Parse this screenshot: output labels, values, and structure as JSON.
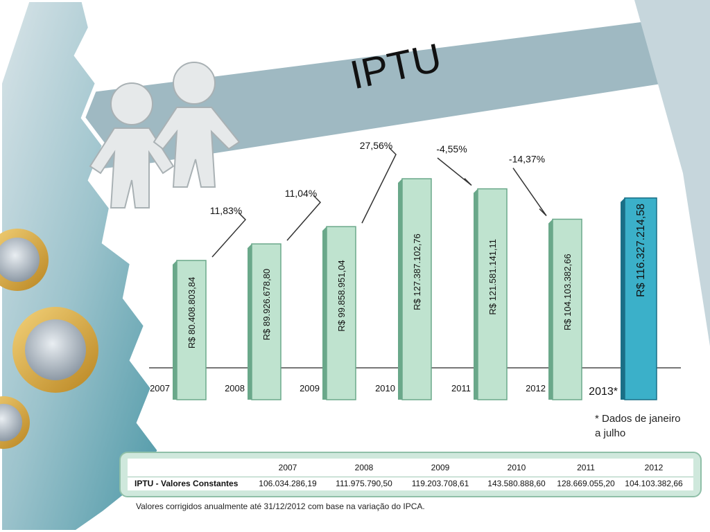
{
  "title": "IPTU",
  "chart_data": {
    "type": "bar",
    "categories": [
      "2007",
      "2008",
      "2009",
      "2010",
      "2011",
      "2012",
      "2013*"
    ],
    "values": [
      80408803.84,
      89926678.8,
      99858951.04,
      127387102.76,
      121581141.11,
      104103382.66,
      116327214.58
    ],
    "value_labels": [
      "R$ 80.408.803,84",
      "R$ 89.926.678,80",
      "R$ 99.858.951,04",
      "R$ 127.387.102,76",
      "R$ 121.581.141,11",
      "R$ 104.103.382,66",
      "R$ 116.327.214,58"
    ],
    "changes": [
      "11,83%",
      "11,04%",
      "27,56%",
      "-4,55%",
      "-14,37%"
    ],
    "highlight_index": 6,
    "colors": {
      "bar": "#bfe3cf",
      "bar_edge": "#6aa88a",
      "highlight": "#3bb0c9",
      "highlight_edge": "#1a6f86"
    },
    "note_lines": [
      "* Dados de janeiro",
      "a julho"
    ]
  },
  "table": {
    "years": [
      "2007",
      "2008",
      "2009",
      "2010",
      "2011",
      "2012"
    ],
    "row_label": "IPTU - Valores Constantes",
    "values": [
      "106.034.286,19",
      "111.975.790,50",
      "119.203.708,61",
      "143.580.888,60",
      "128.669.055,20",
      "104.103.382,66"
    ]
  },
  "footnote": "Valores corrigidos anualmente até 31/12/2012 com base na variação do IPCA."
}
